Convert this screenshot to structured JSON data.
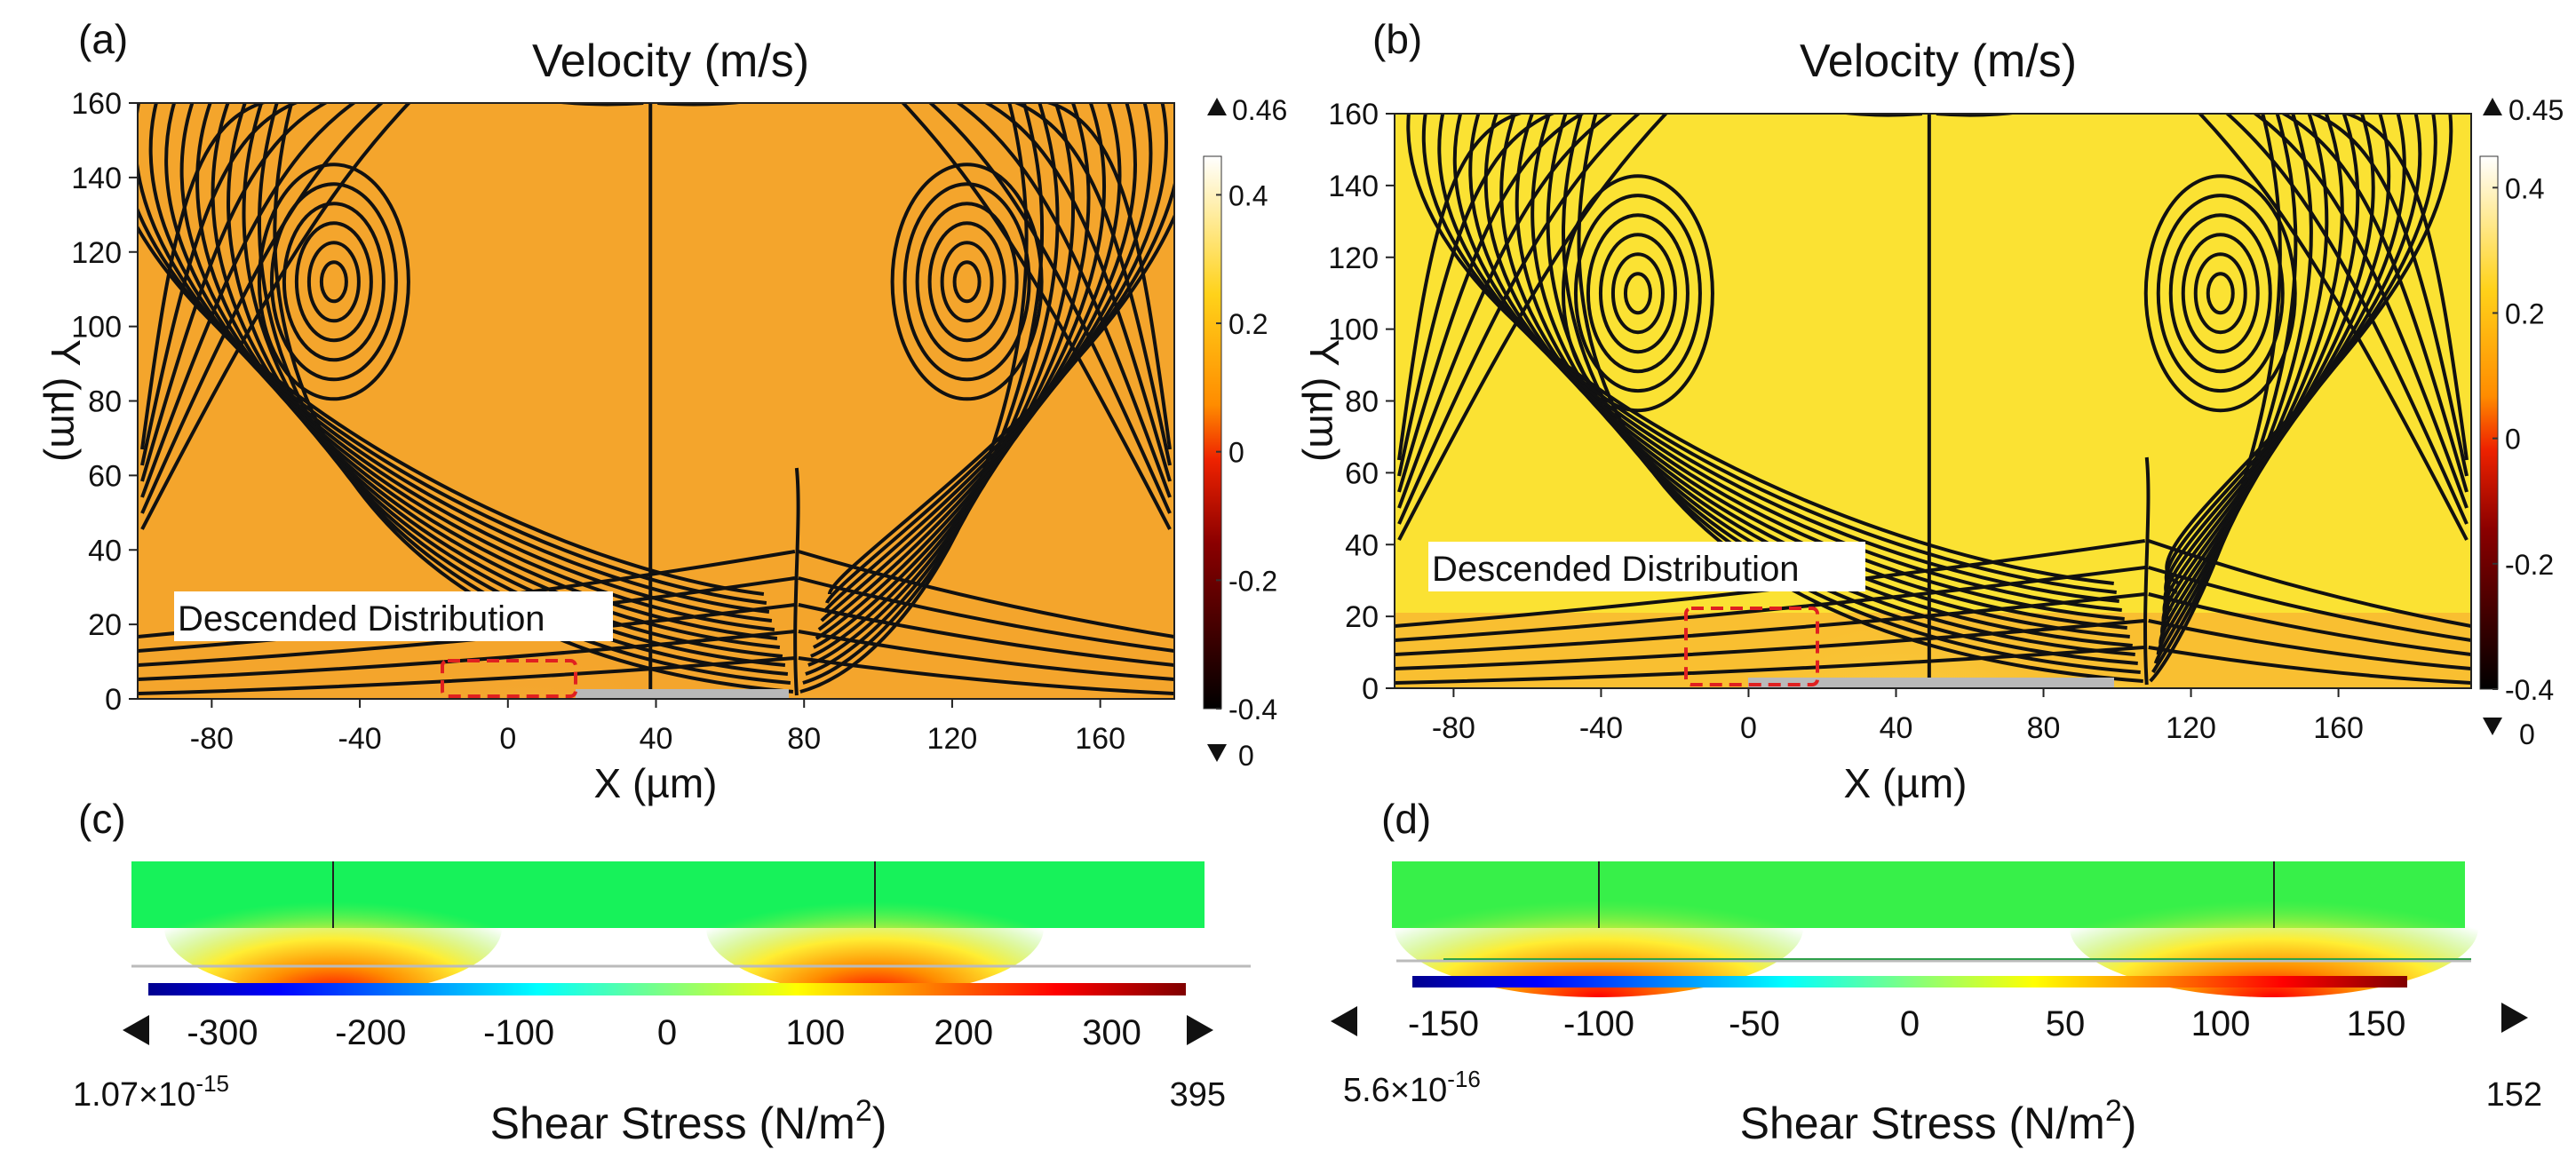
{
  "panels": [
    {
      "id": "a",
      "label": "(a)",
      "title": "Velocity (m/s)",
      "xlabel": "X (µm)",
      "ylabel": "Y (µm)",
      "x_ticks": [
        "-80",
        "-40",
        "0",
        "40",
        "80",
        "120",
        "160"
      ],
      "y_ticks": [
        "0",
        "20",
        "40",
        "60",
        "80",
        "100",
        "120",
        "140",
        "160"
      ],
      "annotation": "Descended Distribution",
      "colorbar_max": "0.46",
      "colorbar_min": "0",
      "colorbar_ticks": [
        "0.4",
        "0.2",
        "0",
        "-0.2",
        "-0.4"
      ]
    },
    {
      "id": "b",
      "label": "(b)",
      "title": "Velocity (m/s)",
      "xlabel": "X (µm)",
      "ylabel": "Y (µm)",
      "x_ticks": [
        "-80",
        "-40",
        "0",
        "40",
        "80",
        "120",
        "160"
      ],
      "y_ticks": [
        "0",
        "20",
        "40",
        "60",
        "80",
        "100",
        "120",
        "140",
        "160"
      ],
      "annotation": "Descended Distribution",
      "colorbar_max": "0.45",
      "colorbar_min": "0",
      "colorbar_ticks": [
        "0.4",
        "0.2",
        "0",
        "-0.2",
        "-0.4"
      ]
    },
    {
      "id": "c",
      "label": "(c)",
      "colorbar_ticks": [
        "-300",
        "-200",
        "-100",
        "0",
        "100",
        "200",
        "300"
      ],
      "min_mantissa": "1.07×10",
      "min_exponent": "-15",
      "max_value": "395",
      "title_main": "Shear Stress (N/m",
      "title_sup": "2",
      "title_end": ")"
    },
    {
      "id": "d",
      "label": "(d)",
      "colorbar_ticks": [
        "-150",
        "-100",
        "-50",
        "0",
        "50",
        "100",
        "150"
      ],
      "min_mantissa": "5.6×10",
      "min_exponent": "-16",
      "max_value": "152",
      "title_main": "Shear Stress (N/m",
      "title_sup": "2",
      "title_end": ")"
    }
  ],
  "chart_data": [
    {
      "type": "heatmap",
      "panel": "a",
      "title": "Velocity (m/s)",
      "xlabel": "X (µm)",
      "ylabel": "Y (µm)",
      "xlim": [
        -100,
        180
      ],
      "ylim": [
        0,
        160
      ],
      "colorbar": {
        "min": -0.4,
        "max": 0.46,
        "ticks": [
          0.4,
          0.2,
          0,
          -0.2,
          -0.4
        ]
      },
      "vortex_centers": [
        [
          -47,
          112
        ],
        [
          124,
          112
        ]
      ],
      "annotation": {
        "text": "Descended Distribution",
        "box_x": [
          -18,
          18
        ],
        "box_y": [
          1,
          10
        ]
      }
    },
    {
      "type": "heatmap",
      "panel": "b",
      "title": "Velocity (m/s)",
      "xlabel": "X (µm)",
      "ylabel": "Y (µm)",
      "xlim": [
        -96,
        196
      ],
      "ylim": [
        0,
        160
      ],
      "colorbar": {
        "min": -0.4,
        "max": 0.45,
        "ticks": [
          0.4,
          0.2,
          0,
          -0.2,
          -0.4
        ]
      },
      "vortex_centers": [
        [
          -30,
          110
        ],
        [
          128,
          110
        ]
      ],
      "annotation": {
        "text": "Descended Distribution",
        "box_x": [
          -18,
          18
        ],
        "box_y": [
          2,
          22
        ]
      }
    },
    {
      "type": "heatmap",
      "panel": "c",
      "title": "Shear Stress (N/m2)",
      "colorbar": {
        "min": -350,
        "max": 350,
        "ticks": [
          -300,
          -200,
          -100,
          0,
          100,
          200,
          300
        ]
      }
    },
    {
      "type": "heatmap",
      "panel": "d",
      "title": "Shear Stress (N/m2)",
      "colorbar": {
        "min": -160,
        "max": 160,
        "ticks": [
          -150,
          -100,
          -50,
          0,
          50,
          100,
          150
        ]
      }
    }
  ]
}
